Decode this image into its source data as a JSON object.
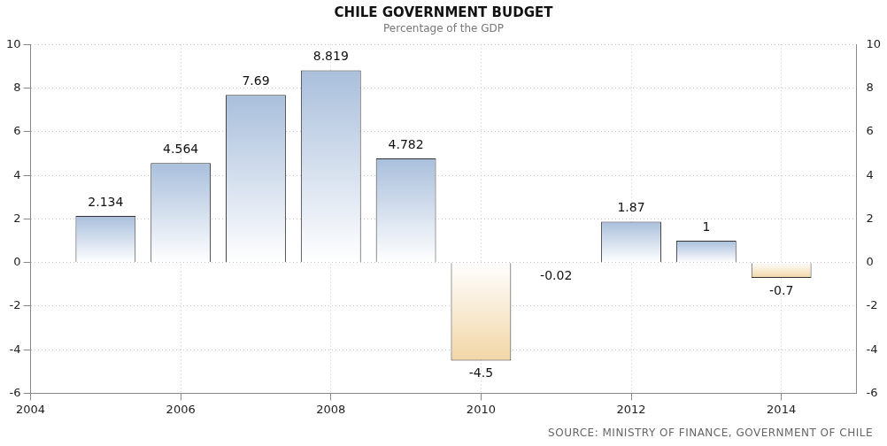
{
  "chart_data": {
    "type": "bar",
    "title": "CHILE GOVERNMENT BUDGET",
    "subtitle": "Percentage of the GDP",
    "x": [
      2005,
      2006,
      2007,
      2008,
      2009,
      2010,
      2011,
      2012,
      2013,
      2014
    ],
    "values": [
      2.134,
      4.564,
      7.69,
      8.819,
      4.782,
      -4.5,
      -0.02,
      1.87,
      1,
      -0.7
    ],
    "colors": [
      "#a9bfdc",
      "#a9bfdc",
      "#a9bfdc",
      "#a9bfdc",
      "#a9bfdc",
      "#f2d6a6",
      "#333333",
      "#a9bfdc",
      "#a9bfdc",
      "#f2d6a6"
    ],
    "xlim": [
      2004,
      2015
    ],
    "xticks": [
      2004,
      2006,
      2008,
      2010,
      2012,
      2014
    ],
    "ylim": [
      -6,
      10
    ],
    "yticks": [
      -6,
      -4,
      -2,
      0,
      2,
      4,
      6,
      8,
      10
    ],
    "y2lim": [
      -6,
      10
    ],
    "y2ticks": [
      -6,
      -4,
      -2,
      0,
      2,
      4,
      6,
      8,
      10
    ],
    "grid": true,
    "legend": false,
    "data_labels": true,
    "annotations": [
      "SOURCE: MINISTRY OF FINANCE, GOVERNMENT OF CHILE"
    ]
  }
}
